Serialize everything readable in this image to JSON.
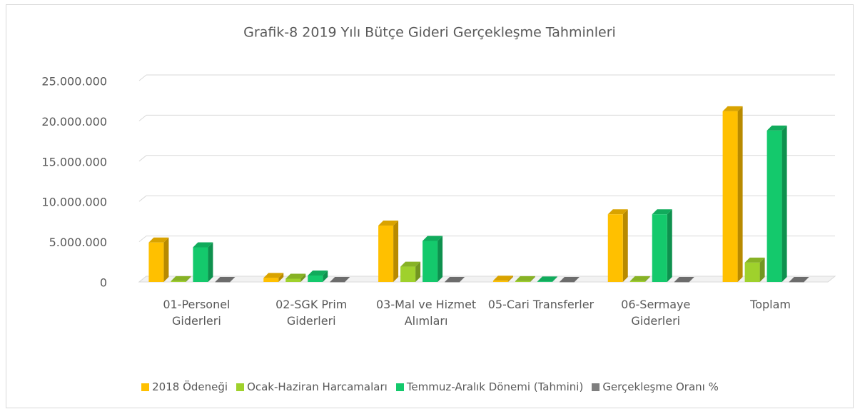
{
  "chart_data": {
    "type": "bar3d",
    "title": "Grafik-8 2019 Yılı Bütçe Gideri Gerçekleşme Tahminleri",
    "categories": [
      "01-Personel Giderleri",
      "02-SGK Prim Giderleri",
      "03-Mal ve Hizmet Alımları",
      "05-Cari Transferler",
      "06-Sermaye Giderleri",
      "Toplam"
    ],
    "series": [
      {
        "name": "2018 Ödeneği",
        "color": "#ffc000",
        "values": [
          4900000,
          500000,
          7000000,
          150000,
          8400000,
          21200000
        ]
      },
      {
        "name": "Ocak-Haziran Harcamaları",
        "color": "#9fd12c",
        "values": [
          100000,
          400000,
          1900000,
          100000,
          100000,
          2400000
        ]
      },
      {
        "name": "Temmuz-Aralık Dönemi (Tahmini)",
        "color": "#14c96c",
        "values": [
          4300000,
          800000,
          5100000,
          50000,
          8400000,
          18800000
        ]
      },
      {
        "name": "Gerçekleşme Oranı %",
        "color": "#7f7f7f",
        "values": [
          0,
          0,
          0,
          0,
          0,
          0
        ]
      }
    ],
    "ylim": [
      0,
      25000000
    ],
    "yticks": [
      0,
      {
        "value": 5000000,
        "label": "5.000.000"
      },
      {
        "value": 10000000,
        "label": "10.000.000"
      },
      {
        "value": 15000000,
        "label": "15.000.000"
      },
      {
        "value": 20000000,
        "label": "20.000.000"
      },
      {
        "value": 25000000,
        "label": "25.000.000"
      }
    ],
    "grid": true,
    "legend": "bottom"
  }
}
